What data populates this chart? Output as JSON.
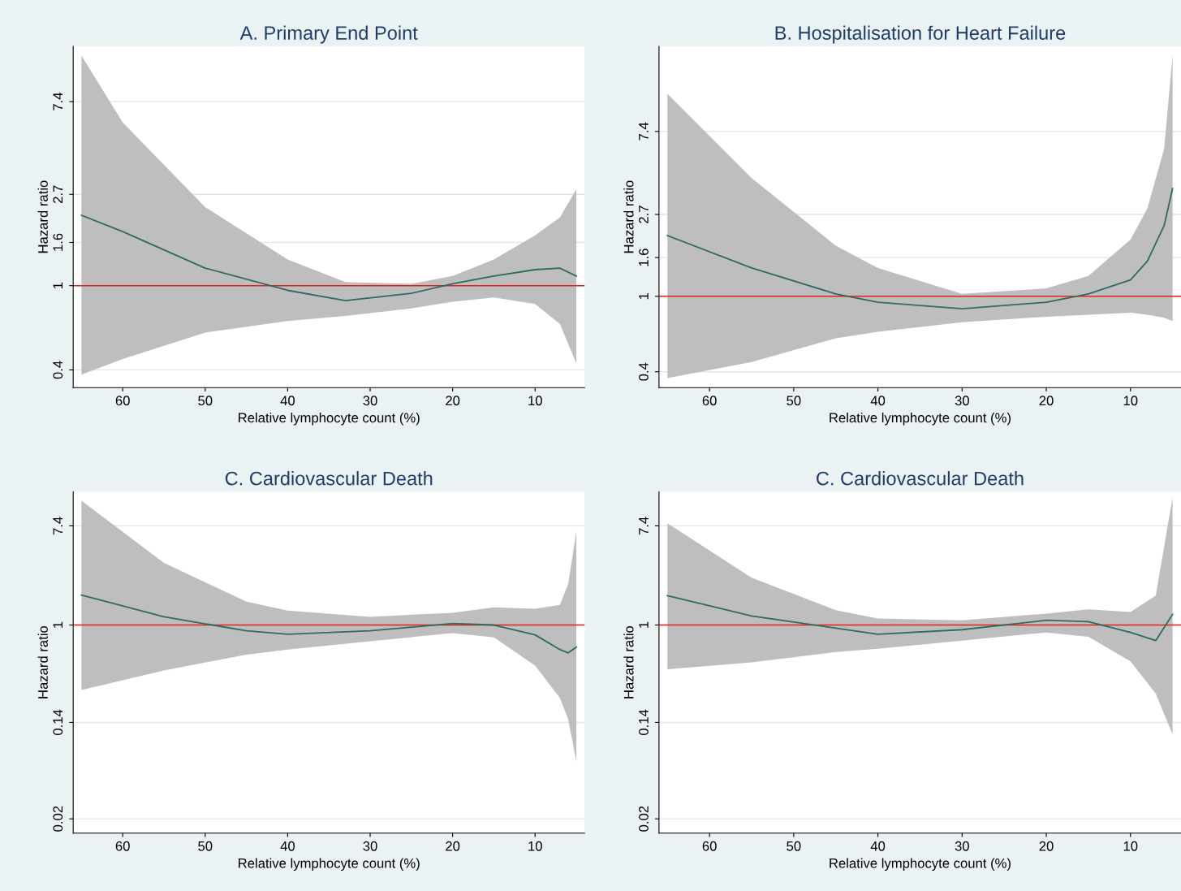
{
  "chart_data": [
    {
      "type": "line",
      "title": "A. Primary End Point",
      "xlabel": "Relative lymphocyte count (%)",
      "ylabel": "Hazard ratio",
      "log": "y",
      "grid": "y",
      "xlim": [
        66,
        4
      ],
      "xticks": [
        60,
        50,
        40,
        30,
        20,
        10
      ],
      "ylim": [
        0.33,
        13.5
      ],
      "yticks": [
        0.4,
        1,
        1.6,
        2.7,
        7.4
      ],
      "ref_lines": [
        {
          "axis": "y",
          "value": 1,
          "color": "#e3201b"
        }
      ],
      "series": [
        {
          "color": "#2f6b5e",
          "x": [
            65,
            60,
            50,
            40,
            33,
            25,
            20,
            15,
            10,
            7,
            5
          ],
          "values": [
            2.15,
            1.8,
            1.21,
            0.95,
            0.85,
            0.92,
            1.02,
            1.11,
            1.19,
            1.21,
            1.11
          ],
          "lower": [
            0.38,
            0.45,
            0.6,
            0.68,
            0.72,
            0.78,
            0.84,
            0.88,
            0.82,
            0.66,
            0.43
          ],
          "upper": [
            12.2,
            5.9,
            2.35,
            1.33,
            1.04,
            1.02,
            1.11,
            1.33,
            1.73,
            2.1,
            2.85
          ]
        }
      ]
    },
    {
      "type": "line",
      "title": "B. Hospitalisation for Heart Failure",
      "xlabel": "Relative lymphocyte count (%)",
      "ylabel": "Hazard ratio",
      "log": "y",
      "grid": "y",
      "xlim": [
        66,
        4
      ],
      "xticks": [
        60,
        50,
        40,
        30,
        20,
        10
      ],
      "ylim": [
        0.33,
        20.8
      ],
      "yticks": [
        0.4,
        1,
        1.6,
        2.7,
        7.4
      ],
      "ref_lines": [
        {
          "axis": "y",
          "value": 1,
          "color": "#e3201b"
        }
      ],
      "series": [
        {
          "color": "#2f6b5e",
          "x": [
            65,
            55,
            45,
            40,
            30,
            20,
            15,
            10,
            8,
            6,
            5
          ],
          "values": [
            2.09,
            1.41,
            1.03,
            0.93,
            0.86,
            0.93,
            1.03,
            1.22,
            1.53,
            2.36,
            3.7
          ],
          "lower": [
            0.37,
            0.45,
            0.6,
            0.65,
            0.73,
            0.78,
            0.8,
            0.82,
            0.8,
            0.77,
            0.74
          ],
          "upper": [
            11.7,
            4.2,
            1.85,
            1.41,
            1.03,
            1.1,
            1.28,
            1.99,
            2.9,
            6.0,
            18.7
          ]
        }
      ]
    },
    {
      "type": "line",
      "title": "C. Cardiovascular Death",
      "xlabel": "Relative lymphocyte count (%)",
      "ylabel": "Hazard ratio",
      "log": "y",
      "grid": "y",
      "xlim": [
        66,
        4
      ],
      "xticks": [
        60,
        50,
        40,
        30,
        20,
        10
      ],
      "ylim": [
        0.015,
        14.7
      ],
      "yticks": [
        0.02,
        0.14,
        1,
        7.4
      ],
      "ref_lines": [
        {
          "axis": "y",
          "value": 1,
          "color": "#e3201b"
        }
      ],
      "series": [
        {
          "color": "#2f6b5e",
          "x": [
            65,
            55,
            45,
            40,
            30,
            20,
            15,
            10,
            7,
            6,
            5
          ],
          "values": [
            1.83,
            1.18,
            0.89,
            0.83,
            0.89,
            1.03,
            1.0,
            0.82,
            0.61,
            0.57,
            0.64
          ],
          "lower": [
            0.27,
            0.4,
            0.55,
            0.61,
            0.72,
            0.85,
            0.78,
            0.44,
            0.23,
            0.15,
            0.064
          ],
          "upper": [
            12.3,
            3.5,
            1.6,
            1.34,
            1.18,
            1.28,
            1.43,
            1.39,
            1.5,
            2.27,
            6.6
          ]
        }
      ]
    },
    {
      "type": "line",
      "title": "C. Cardiovascular Death",
      "xlabel": "Relative lymphocyte count (%)",
      "ylabel": "Hazard ratio",
      "log": "y",
      "grid": "y",
      "xlim": [
        66,
        4
      ],
      "xticks": [
        60,
        50,
        40,
        30,
        20,
        10
      ],
      "ylim": [
        0.015,
        14.7
      ],
      "yticks": [
        0.02,
        0.14,
        1,
        7.4
      ],
      "ref_lines": [
        {
          "axis": "y",
          "value": 1,
          "color": "#e3201b"
        }
      ],
      "series": [
        {
          "color": "#2f6b5e",
          "x": [
            65,
            55,
            45,
            40,
            30,
            20,
            15,
            10,
            7,
            5
          ],
          "values": [
            1.81,
            1.2,
            0.94,
            0.83,
            0.91,
            1.1,
            1.07,
            0.86,
            0.73,
            1.24
          ],
          "lower": [
            0.41,
            0.47,
            0.58,
            0.62,
            0.73,
            0.86,
            0.79,
            0.48,
            0.25,
            0.11
          ],
          "upper": [
            7.8,
            2.6,
            1.35,
            1.14,
            1.1,
            1.26,
            1.37,
            1.3,
            1.81,
            13.2
          ]
        }
      ]
    }
  ]
}
